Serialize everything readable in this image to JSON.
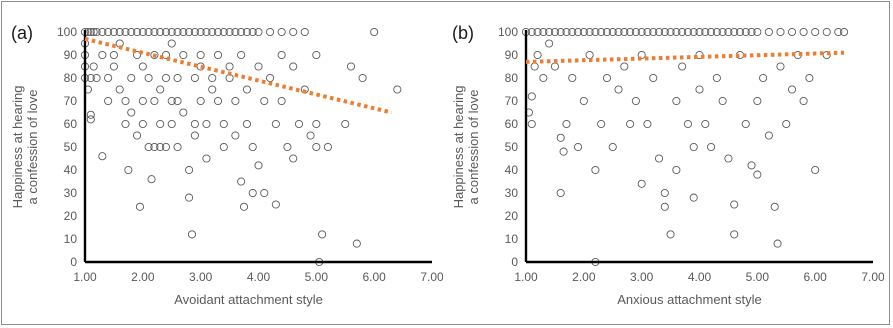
{
  "chart_data": [
    {
      "type": "scatter",
      "panel_label": "(a)",
      "xlabel": "Avoidant attachment style",
      "ylabel": [
        "Happiness at hearing",
        "a confession of love"
      ],
      "xlim": [
        1,
        7
      ],
      "ylim": [
        0,
        100
      ],
      "x_ticks": [
        "1.00",
        "2.00",
        "3.00",
        "4.00",
        "5.00",
        "6.00",
        "7.00"
      ],
      "y_ticks": [
        "0",
        "10",
        "20",
        "30",
        "40",
        "50",
        "60",
        "70",
        "80",
        "90",
        "100"
      ],
      "marker": "hollow circle",
      "trendline": {
        "x": [
          1.0,
          6.3
        ],
        "y": [
          97,
          65
        ],
        "color": "#ed7d31",
        "style": "dotted"
      },
      "points": [
        [
          1.0,
          100
        ],
        [
          1.05,
          100
        ],
        [
          1.1,
          100
        ],
        [
          1.15,
          100
        ],
        [
          1.2,
          100
        ],
        [
          1.3,
          100
        ],
        [
          1.4,
          100
        ],
        [
          1.5,
          100
        ],
        [
          1.6,
          100
        ],
        [
          1.7,
          100
        ],
        [
          1.8,
          100
        ],
        [
          1.9,
          100
        ],
        [
          2.0,
          100
        ],
        [
          2.1,
          100
        ],
        [
          2.2,
          100
        ],
        [
          2.3,
          100
        ],
        [
          2.4,
          100
        ],
        [
          2.5,
          100
        ],
        [
          2.6,
          100
        ],
        [
          2.7,
          100
        ],
        [
          2.8,
          100
        ],
        [
          2.9,
          100
        ],
        [
          3.0,
          100
        ],
        [
          3.1,
          100
        ],
        [
          3.2,
          100
        ],
        [
          3.3,
          100
        ],
        [
          3.4,
          100
        ],
        [
          3.5,
          100
        ],
        [
          3.6,
          100
        ],
        [
          3.7,
          100
        ],
        [
          3.8,
          100
        ],
        [
          3.9,
          100
        ],
        [
          4.0,
          100
        ],
        [
          4.2,
          100
        ],
        [
          4.4,
          100
        ],
        [
          4.6,
          100
        ],
        [
          4.8,
          100
        ],
        [
          1.0,
          90
        ],
        [
          1.0,
          95
        ],
        [
          1.0,
          80
        ],
        [
          1.05,
          75
        ],
        [
          1.0,
          85
        ],
        [
          1.1,
          64
        ],
        [
          1.1,
          62
        ],
        [
          1.1,
          80
        ],
        [
          1.2,
          80
        ],
        [
          1.15,
          85
        ],
        [
          1.3,
          46
        ],
        [
          1.3,
          90
        ],
        [
          1.4,
          80
        ],
        [
          1.4,
          70
        ],
        [
          1.5,
          85
        ],
        [
          1.5,
          90
        ],
        [
          1.6,
          95
        ],
        [
          1.6,
          75
        ],
        [
          1.7,
          70
        ],
        [
          1.7,
          60
        ],
        [
          1.75,
          40
        ],
        [
          1.8,
          80
        ],
        [
          1.8,
          65
        ],
        [
          1.9,
          55
        ],
        [
          1.9,
          90
        ],
        [
          1.95,
          24
        ],
        [
          2.0,
          70
        ],
        [
          2.0,
          85
        ],
        [
          2.0,
          60
        ],
        [
          2.1,
          50
        ],
        [
          2.1,
          80
        ],
        [
          2.15,
          36
        ],
        [
          2.2,
          90
        ],
        [
          2.2,
          70
        ],
        [
          2.2,
          50
        ],
        [
          2.3,
          75
        ],
        [
          2.3,
          60
        ],
        [
          2.3,
          50
        ],
        [
          2.4,
          80
        ],
        [
          2.4,
          90
        ],
        [
          2.4,
          50
        ],
        [
          2.5,
          70
        ],
        [
          2.5,
          95
        ],
        [
          2.5,
          60
        ],
        [
          2.6,
          80
        ],
        [
          2.6,
          50
        ],
        [
          2.6,
          70
        ],
        [
          2.7,
          65
        ],
        [
          2.7,
          90
        ],
        [
          2.8,
          40
        ],
        [
          2.8,
          28
        ],
        [
          2.85,
          12
        ],
        [
          2.9,
          80
        ],
        [
          2.9,
          60
        ],
        [
          2.9,
          55
        ],
        [
          3.0,
          85
        ],
        [
          3.0,
          90
        ],
        [
          3.0,
          70
        ],
        [
          3.1,
          60
        ],
        [
          3.1,
          45
        ],
        [
          3.2,
          80
        ],
        [
          3.2,
          75
        ],
        [
          3.3,
          70
        ],
        [
          3.3,
          90
        ],
        [
          3.4,
          50
        ],
        [
          3.4,
          60
        ],
        [
          3.5,
          80
        ],
        [
          3.5,
          85
        ],
        [
          3.6,
          70
        ],
        [
          3.6,
          55
        ],
        [
          3.7,
          90
        ],
        [
          3.7,
          35
        ],
        [
          3.75,
          24
        ],
        [
          3.8,
          75
        ],
        [
          3.8,
          60
        ],
        [
          3.9,
          50
        ],
        [
          3.9,
          30
        ],
        [
          4.0,
          85
        ],
        [
          4.0,
          42
        ],
        [
          4.1,
          70
        ],
        [
          4.1,
          30
        ],
        [
          4.2,
          80
        ],
        [
          4.3,
          25
        ],
        [
          4.3,
          60
        ],
        [
          4.4,
          90
        ],
        [
          4.4,
          70
        ],
        [
          4.5,
          50
        ],
        [
          4.6,
          85
        ],
        [
          4.6,
          45
        ],
        [
          4.7,
          60
        ],
        [
          4.8,
          75
        ],
        [
          4.9,
          55
        ],
        [
          5.0,
          90
        ],
        [
          5.0,
          60
        ],
        [
          5.0,
          50
        ],
        [
          5.05,
          0
        ],
        [
          5.1,
          12
        ],
        [
          5.2,
          50
        ],
        [
          5.5,
          60
        ],
        [
          5.6,
          85
        ],
        [
          5.7,
          8
        ],
        [
          5.8,
          80
        ],
        [
          6.0,
          100
        ],
        [
          6.4,
          75
        ]
      ]
    },
    {
      "type": "scatter",
      "panel_label": "(b)",
      "xlabel": "Anxious attachment style",
      "ylabel": [
        "Happiness at hearing",
        "a confession of love"
      ],
      "xlim": [
        1,
        7
      ],
      "ylim": [
        0,
        100
      ],
      "x_ticks": [
        "1.00",
        "2.00",
        "3.00",
        "4.00",
        "5.00",
        "6.00",
        "7.00"
      ],
      "y_ticks": [
        "0",
        "10",
        "20",
        "30",
        "40",
        "50",
        "60",
        "70",
        "80",
        "90",
        "100"
      ],
      "marker": "hollow circle",
      "trendline": {
        "x": [
          1.0,
          6.5
        ],
        "y": [
          87,
          91
        ],
        "color": "#ed7d31",
        "style": "dotted"
      },
      "points": [
        [
          1.0,
          100
        ],
        [
          1.1,
          100
        ],
        [
          1.2,
          100
        ],
        [
          1.3,
          100
        ],
        [
          1.4,
          100
        ],
        [
          1.5,
          100
        ],
        [
          1.6,
          100
        ],
        [
          1.7,
          100
        ],
        [
          1.8,
          100
        ],
        [
          1.9,
          100
        ],
        [
          2.0,
          100
        ],
        [
          2.1,
          100
        ],
        [
          2.2,
          100
        ],
        [
          2.3,
          100
        ],
        [
          2.4,
          100
        ],
        [
          2.5,
          100
        ],
        [
          2.6,
          100
        ],
        [
          2.7,
          100
        ],
        [
          2.8,
          100
        ],
        [
          2.9,
          100
        ],
        [
          3.0,
          100
        ],
        [
          3.1,
          100
        ],
        [
          3.2,
          100
        ],
        [
          3.3,
          100
        ],
        [
          3.4,
          100
        ],
        [
          3.5,
          100
        ],
        [
          3.6,
          100
        ],
        [
          3.7,
          100
        ],
        [
          3.8,
          100
        ],
        [
          3.9,
          100
        ],
        [
          4.0,
          100
        ],
        [
          4.1,
          100
        ],
        [
          4.2,
          100
        ],
        [
          4.3,
          100
        ],
        [
          4.4,
          100
        ],
        [
          4.5,
          100
        ],
        [
          4.6,
          100
        ],
        [
          4.7,
          100
        ],
        [
          4.8,
          100
        ],
        [
          4.9,
          100
        ],
        [
          5.0,
          100
        ],
        [
          5.2,
          100
        ],
        [
          5.4,
          100
        ],
        [
          5.6,
          100
        ],
        [
          5.8,
          100
        ],
        [
          6.0,
          100
        ],
        [
          6.2,
          100
        ],
        [
          6.4,
          100
        ],
        [
          6.5,
          100
        ],
        [
          1.05,
          65
        ],
        [
          1.1,
          72
        ],
        [
          1.1,
          60
        ],
        [
          1.15,
          85
        ],
        [
          1.2,
          90
        ],
        [
          1.3,
          80
        ],
        [
          1.4,
          95
        ],
        [
          1.5,
          85
        ],
        [
          1.6,
          54
        ],
        [
          1.6,
          30
        ],
        [
          1.65,
          48
        ],
        [
          1.7,
          60
        ],
        [
          1.8,
          80
        ],
        [
          1.9,
          50
        ],
        [
          2.0,
          70
        ],
        [
          2.1,
          90
        ],
        [
          2.2,
          0
        ],
        [
          2.2,
          40
        ],
        [
          2.3,
          60
        ],
        [
          2.4,
          80
        ],
        [
          2.5,
          50
        ],
        [
          2.6,
          75
        ],
        [
          2.7,
          85
        ],
        [
          2.8,
          60
        ],
        [
          2.9,
          70
        ],
        [
          3.0,
          34
        ],
        [
          3.0,
          90
        ],
        [
          3.1,
          60
        ],
        [
          3.2,
          80
        ],
        [
          3.3,
          45
        ],
        [
          3.4,
          24
        ],
        [
          3.4,
          30
        ],
        [
          3.5,
          12
        ],
        [
          3.6,
          70
        ],
        [
          3.6,
          40
        ],
        [
          3.7,
          85
        ],
        [
          3.8,
          60
        ],
        [
          3.9,
          50
        ],
        [
          3.9,
          28
        ],
        [
          4.0,
          75
        ],
        [
          4.0,
          90
        ],
        [
          4.1,
          60
        ],
        [
          4.2,
          50
        ],
        [
          4.3,
          80
        ],
        [
          4.4,
          70
        ],
        [
          4.5,
          45
        ],
        [
          4.6,
          25
        ],
        [
          4.6,
          12
        ],
        [
          4.7,
          90
        ],
        [
          4.8,
          60
        ],
        [
          4.9,
          42
        ],
        [
          5.0,
          38
        ],
        [
          5.0,
          70
        ],
        [
          5.1,
          80
        ],
        [
          5.2,
          55
        ],
        [
          5.3,
          24
        ],
        [
          5.35,
          8
        ],
        [
          5.4,
          85
        ],
        [
          5.5,
          60
        ],
        [
          5.6,
          75
        ],
        [
          5.7,
          90
        ],
        [
          5.8,
          70
        ],
        [
          5.9,
          80
        ],
        [
          6.0,
          40
        ],
        [
          6.2,
          90
        ]
      ]
    }
  ]
}
